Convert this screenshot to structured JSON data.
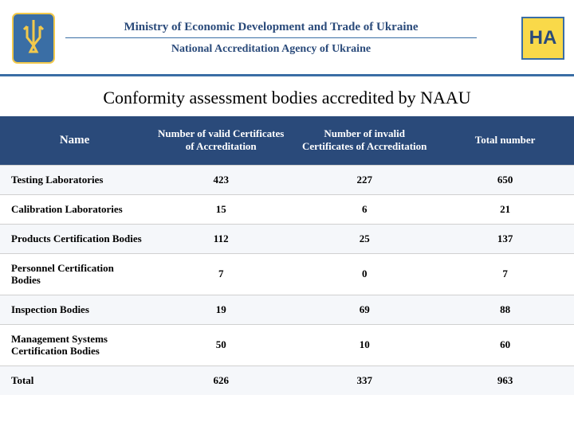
{
  "header": {
    "ministry": "Ministry of Economic Development and Trade of Ukraine",
    "agency": "National Accreditation Agency of Ukraine",
    "logo_text": "HA"
  },
  "title": "Conformity assessment bodies accredited by NAAU",
  "table": {
    "header_bg": "#2a4a7a",
    "header_fg": "#ffffff",
    "columns": [
      "Name",
      "Number of valid Certificates of Accreditation",
      "Number of invalid Certificates of Accreditation",
      "Total number"
    ],
    "rows": [
      {
        "name": "Testing Laboratories",
        "valid": 423,
        "invalid": 227,
        "total": 650
      },
      {
        "name": "Calibration Laboratories",
        "valid": 15,
        "invalid": 6,
        "total": 21
      },
      {
        "name": "Products Certification Bodies",
        "valid": 112,
        "invalid": 25,
        "total": 137
      },
      {
        "name": "Personnel Certification Bodies",
        "valid": 7,
        "invalid": 0,
        "total": 7
      },
      {
        "name": "Inspection Bodies",
        "valid": 19,
        "invalid": 69,
        "total": 88
      },
      {
        "name": "Management Systems Certification Bodies",
        "valid": 50,
        "invalid": 10,
        "total": 60
      },
      {
        "name": "Total",
        "valid": 626,
        "invalid": 337,
        "total": 963
      }
    ]
  }
}
